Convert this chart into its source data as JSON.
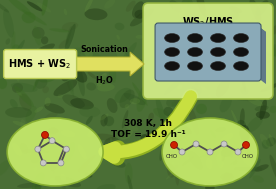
{
  "bg_color": "#4a6e35",
  "hms_label": "HMS + WS₂",
  "ws2_hms_label": "WS₂/HMS",
  "arrow1_top": "Sonication",
  "arrow1_bot": "H₂O",
  "rxn_line1": "308 K, 1h",
  "rxn_line2": "TOF = 19.9 h⁻¹",
  "cho_label": "CHO",
  "hms_box_color": "#e8f2a0",
  "hms_box_edge": "#b8c850",
  "ws2_box_color": "#d4ee88",
  "ws2_box_edge": "#98b840",
  "circle_left_color": "#c8ec6c",
  "circle_right_color": "#c8ec6c",
  "circle_edge": "#88b030",
  "tray_top_color": "#8aaab8",
  "tray_side_color": "#607888",
  "tray_bottom_color": "#506878",
  "hole_color": "#111111",
  "arrow1_fill": "#e0e060",
  "arrow1_edge": "#b0b030",
  "arrow2_fill": "#c8e040",
  "arrow2_edge": "#90b020",
  "atom_gray": "#c8c8c8",
  "atom_red": "#cc2200",
  "bond_color": "#505050",
  "figsize": [
    2.76,
    1.89
  ],
  "dpi": 100
}
